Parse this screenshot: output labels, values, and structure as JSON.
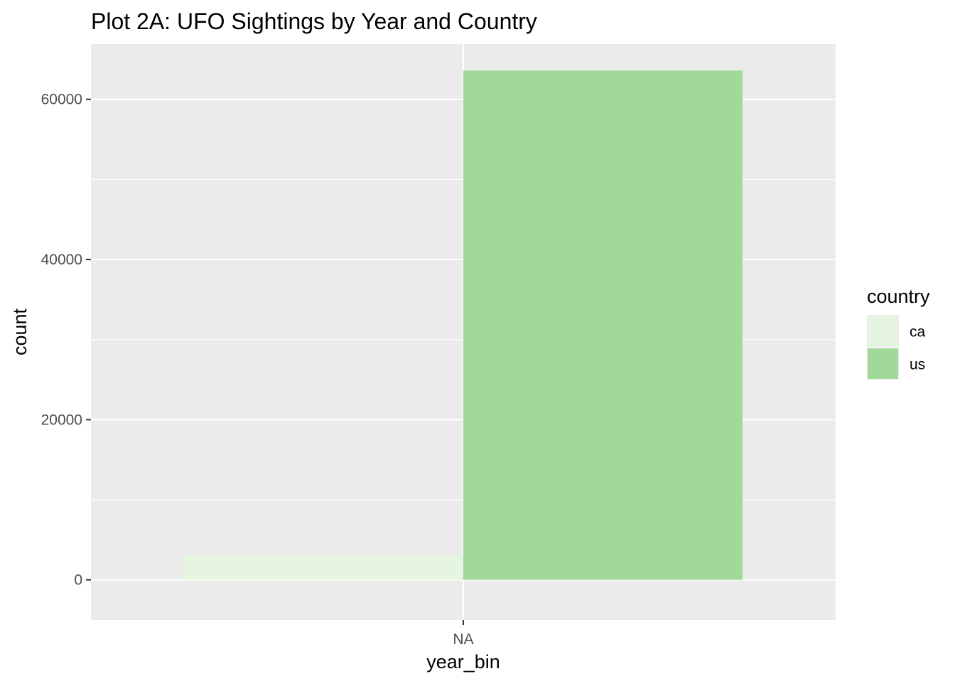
{
  "chart_data": {
    "type": "bar",
    "position": "dodge",
    "title": "Plot 2A: UFO Sightings by Year and Country",
    "xlabel": "year_bin",
    "ylabel": "count",
    "categories": [
      "NA"
    ],
    "series": [
      {
        "name": "ca",
        "values": [
          3000
        ],
        "color": "#e5f5e0"
      },
      {
        "name": "us",
        "values": [
          63600
        ],
        "color": "#a1d99b"
      }
    ],
    "ylim": [
      -5000,
      66900
    ],
    "yticks": [
      0,
      20000,
      40000,
      60000
    ],
    "grid": true,
    "legend": {
      "title": "country",
      "placement": "right"
    },
    "colors": {
      "panel_background": "#ebebeb",
      "grid_line": "#ffffff",
      "tick_text": "#4d4d4d",
      "tick_mark": "#333333"
    }
  }
}
